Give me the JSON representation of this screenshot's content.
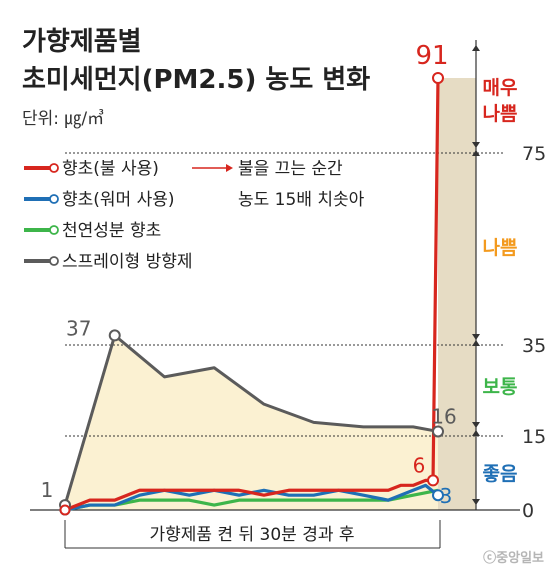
{
  "title": {
    "line1": "가향제품별",
    "line2": "초미세먼지(PM2.5) 농도 변화"
  },
  "unit": "단위: ㎍/㎥",
  "legend": [
    {
      "label": "향초(불 사용)",
      "color": "#d7261e"
    },
    {
      "label": "향초(워머 사용)",
      "color": "#1f6fb5"
    },
    {
      "label": "천연성분 향초",
      "color": "#3db54a"
    },
    {
      "label": "스프레이형 방향제",
      "color": "#5b5b5b"
    }
  ],
  "annotation": {
    "line1": "불을 끄는 순간",
    "line2": "농도 15배 치솟아"
  },
  "bands": [
    {
      "label_lines": [
        "매우",
        "나쁨"
      ],
      "color": "#d7261e"
    },
    {
      "label_lines": [
        "나쁨"
      ],
      "color": "#f39a1e"
    },
    {
      "label_lines": [
        "보통"
      ],
      "color": "#3db54a"
    },
    {
      "label_lines": [
        "좋음"
      ],
      "color": "#1f6fb5"
    }
  ],
  "xlabel": "가향제품 켠 뒤 30분 경과 후",
  "credit": "ⓒ중앙일보",
  "chart_data": {
    "type": "line",
    "xlabel": "가향제품 켠 뒤 30분 경과 후",
    "ylabel": "",
    "unit": "㎍/㎥",
    "ylim": [
      0,
      100
    ],
    "y_ticks": [
      0,
      15,
      35,
      75
    ],
    "grid": false,
    "legend_position": "left",
    "thresholds": [
      {
        "value": 15,
        "label": "15"
      },
      {
        "value": 35,
        "label": "35"
      },
      {
        "value": 75,
        "label": "75"
      }
    ],
    "x": [
      0,
      1,
      2,
      3,
      4,
      5,
      6,
      7,
      8,
      9,
      10,
      11,
      12,
      13,
      14,
      15,
      16,
      17,
      18,
      19,
      20,
      21,
      22,
      23,
      24,
      25,
      26,
      27,
      28,
      29,
      30
    ],
    "series": [
      {
        "name": "향초(불 사용)",
        "color": "#d7261e",
        "x": [
          0,
          2,
          4,
          6,
          8,
          10,
          12,
          14,
          16,
          18,
          20,
          22,
          24,
          26,
          27,
          28,
          29,
          29.6,
          30
        ],
        "values": [
          0,
          2,
          2,
          4,
          4,
          4,
          4,
          4,
          3,
          4,
          4,
          4,
          4,
          4,
          5,
          5,
          6,
          6,
          91
        ],
        "labels": [
          {
            "x": 29.6,
            "value": "6"
          },
          {
            "x": 30,
            "value": "91"
          }
        ]
      },
      {
        "name": "향초(워머 사용)",
        "color": "#1f6fb5",
        "x": [
          0,
          2,
          4,
          6,
          8,
          10,
          12,
          14,
          16,
          18,
          20,
          22,
          24,
          26,
          28,
          29,
          30
        ],
        "values": [
          0,
          1,
          1,
          3,
          4,
          3,
          4,
          3,
          4,
          3,
          3,
          4,
          3,
          2,
          4,
          5,
          3
        ],
        "labels": [
          {
            "x": 30,
            "value": "3"
          }
        ]
      },
      {
        "name": "천연성분 향초",
        "color": "#3db54a",
        "x": [
          0,
          2,
          4,
          6,
          8,
          10,
          12,
          14,
          16,
          18,
          20,
          22,
          24,
          26,
          28,
          30
        ],
        "values": [
          0,
          1,
          1,
          2,
          2,
          2,
          1,
          2,
          2,
          2,
          2,
          2,
          2,
          2,
          3,
          4
        ],
        "labels": []
      },
      {
        "name": "스프레이형 방향제",
        "color": "#5b5b5b",
        "x": [
          0,
          4,
          8,
          12,
          16,
          20,
          24,
          28,
          30
        ],
        "values": [
          1,
          37,
          28,
          30,
          22,
          18,
          17,
          17,
          16
        ],
        "labels": [
          {
            "x": 0,
            "value": "1"
          },
          {
            "x": 4,
            "value": "37"
          },
          {
            "x": 30,
            "value": "16"
          }
        ]
      }
    ]
  }
}
